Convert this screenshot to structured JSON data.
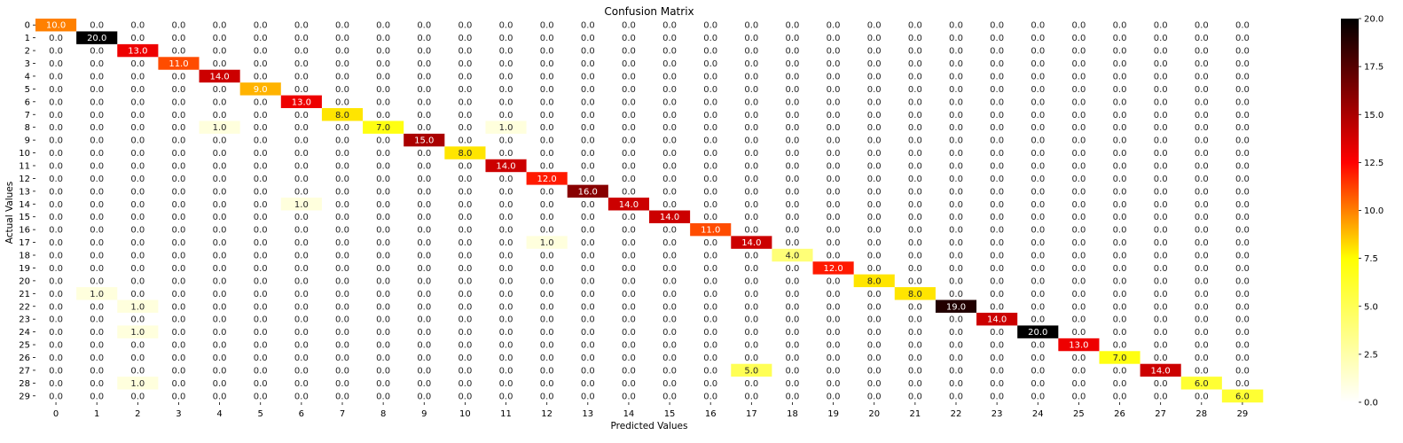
{
  "chart_data": {
    "type": "heatmap",
    "title": "Confusion Matrix",
    "xlabel": "Predicted Values",
    "ylabel": "Actual Values",
    "x_ticks": [
      "0",
      "1",
      "2",
      "3",
      "4",
      "5",
      "6",
      "7",
      "8",
      "9",
      "10",
      "11",
      "12",
      "13",
      "14",
      "15",
      "16",
      "17",
      "18",
      "19",
      "20",
      "21",
      "22",
      "23",
      "24",
      "25",
      "26",
      "27",
      "28",
      "29"
    ],
    "y_ticks": [
      "0",
      "1",
      "2",
      "3",
      "4",
      "5",
      "6",
      "7",
      "8",
      "9",
      "10",
      "11",
      "12",
      "13",
      "14",
      "15",
      "16",
      "17",
      "18",
      "19",
      "20",
      "21",
      "22",
      "23",
      "24",
      "25",
      "26",
      "27",
      "28",
      "29"
    ],
    "value_format": "0.0",
    "diagonal": [
      10,
      20,
      13,
      11,
      14,
      9,
      13,
      8,
      7,
      15,
      8,
      14,
      12,
      16,
      14,
      14,
      11,
      14,
      4,
      12,
      8,
      8,
      19,
      14,
      20,
      13,
      7,
      14,
      6,
      6
    ],
    "off_diagonal": [
      {
        "row": 8,
        "col": 4,
        "value": 1
      },
      {
        "row": 8,
        "col": 11,
        "value": 1
      },
      {
        "row": 14,
        "col": 6,
        "value": 1
      },
      {
        "row": 17,
        "col": 12,
        "value": 1
      },
      {
        "row": 21,
        "col": 1,
        "value": 1
      },
      {
        "row": 22,
        "col": 2,
        "value": 1
      },
      {
        "row": 24,
        "col": 2,
        "value": 1
      },
      {
        "row": 27,
        "col": 17,
        "value": 5
      },
      {
        "row": 28,
        "col": 2,
        "value": 1
      }
    ],
    "colormap": "hot_r",
    "colorbar": {
      "range": [
        0,
        20
      ],
      "ticks": [
        "0.0",
        "2.5",
        "5.0",
        "7.5",
        "10.0",
        "12.5",
        "15.0",
        "17.5",
        "20.0"
      ]
    },
    "colors": {
      "low": "#ffffff",
      "yellow": "#ffff00",
      "red": "#ff0000",
      "high": "#000000"
    }
  }
}
